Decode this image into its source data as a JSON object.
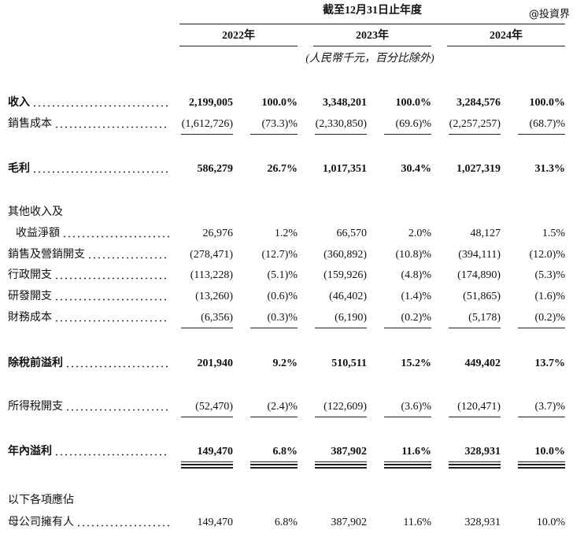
{
  "header": {
    "period": "截至12月31日止年度",
    "years": [
      "2022年",
      "2023年",
      "2024年"
    ],
    "unit_note": "(人民幣千元，百分比除外)"
  },
  "watermark": "@投資界",
  "table": {
    "rows": [
      {
        "label": "收入",
        "cells": [
          "2,199,005",
          "100.0%",
          "3,348,201",
          "100.0%",
          "3,284,576",
          "100.0%"
        ]
      },
      {
        "label": "銷售成本",
        "cells": [
          "(1,612,726)",
          "(73.3)%",
          "(2,330,850)",
          "(69.6)%",
          "(2,257,257)",
          "(68.7)%"
        ]
      },
      {
        "label": "毛利",
        "cells": [
          "586,279",
          "26.7%",
          "1,017,351",
          "30.4%",
          "1,027,319",
          "31.3%"
        ]
      },
      {
        "label": "其他收入及"
      },
      {
        "label": "收益淨額",
        "cells": [
          "26,976",
          "1.2%",
          "66,570",
          "2.0%",
          "48,127",
          "1.5%"
        ]
      },
      {
        "label": "銷售及營銷開支",
        "cells": [
          "(278,471)",
          "(12.7)%",
          "(360,892)",
          "(10.8)%",
          "(394,111)",
          "(12.0)%"
        ]
      },
      {
        "label": "行政開支",
        "cells": [
          "(113,228)",
          "(5.1)%",
          "(159,926)",
          "(4.8)%",
          "(174,890)",
          "(5.3)%"
        ]
      },
      {
        "label": "研發開支",
        "cells": [
          "(13,260)",
          "(0.6)%",
          "(46,402)",
          "(1.4)%",
          "(51,865)",
          "(1.6)%"
        ]
      },
      {
        "label": "財務成本",
        "cells": [
          "(6,356)",
          "(0.3)%",
          "(6,190)",
          "(0.2)%",
          "(5,178)",
          "(0.2)%"
        ]
      },
      {
        "label": "除稅前溢利",
        "cells": [
          "201,940",
          "9.2%",
          "510,511",
          "15.2%",
          "449,402",
          "13.7%"
        ]
      },
      {
        "label": "所得稅開支",
        "cells": [
          "(52,470)",
          "(2.4)%",
          "(122,609)",
          "(3.6)%",
          "(120,471)",
          "(3.7)%"
        ]
      },
      {
        "label": "年內溢利",
        "cells": [
          "149,470",
          "6.8%",
          "387,902",
          "11.6%",
          "328,931",
          "10.0%"
        ]
      },
      {
        "label": "以下各項應佔"
      },
      {
        "label": "母公司擁有人",
        "cells": [
          "149,470",
          "6.8%",
          "387,902",
          "11.6%",
          "328,931",
          "10.0%"
        ]
      }
    ]
  }
}
